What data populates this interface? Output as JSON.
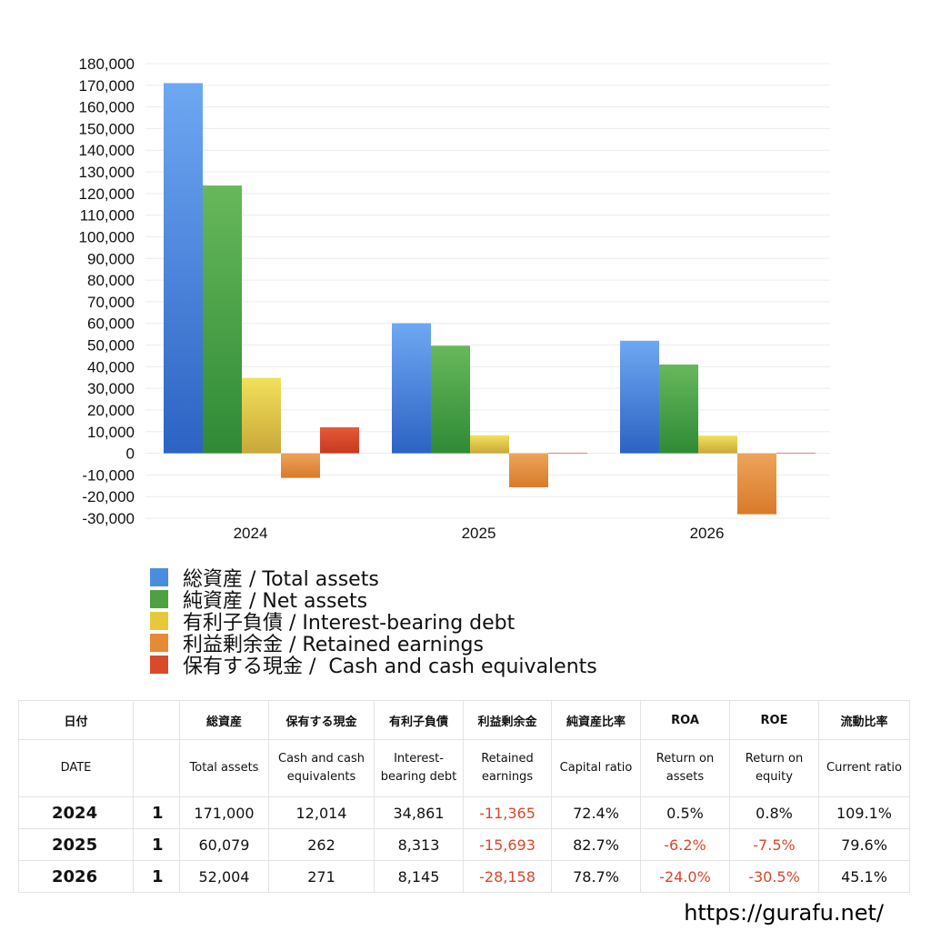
{
  "chart_data": {
    "type": "bar",
    "categories": [
      "2024",
      "2025",
      "2026"
    ],
    "ylim": [
      -30000,
      180000
    ],
    "ytick_step": 10000,
    "grid": true,
    "legend_position": "bottom",
    "series": [
      {
        "name": "総資産 / Total assets",
        "color": "#4a8de0",
        "values": [
          171000,
          60079,
          52004
        ]
      },
      {
        "name": "純資産 / Net assets",
        "color": "#4fa043",
        "values": [
          123700,
          49700,
          41000
        ]
      },
      {
        "name": "有利子負債 / Interest-bearing debt",
        "color": "#e6c93a",
        "values": [
          34861,
          8313,
          8145
        ]
      },
      {
        "name": "利益剰余金 / Retained earnings",
        "color": "#e58a35",
        "values": [
          -11365,
          -15693,
          -28158
        ]
      },
      {
        "name": "保有する現金 /  Cash and cash equivalents",
        "color": "#d94a2a",
        "values": [
          12014,
          262,
          271
        ]
      }
    ],
    "ytick_labels": [
      "-30,000",
      "-20,000",
      "-10,000",
      "0",
      "10,000",
      "20,000",
      "30,000",
      "40,000",
      "50,000",
      "60,000",
      "70,000",
      "80,000",
      "90,000",
      "100,000",
      "110,000",
      "120,000",
      "130,000",
      "140,000",
      "150,000",
      "160,000",
      "170,000",
      "180,000"
    ]
  },
  "table": {
    "header_jp": [
      "日付",
      "",
      "総資産",
      "保有する現金",
      "有利子負債",
      "利益剰余金",
      "純資産比率",
      "ROA",
      "ROE",
      "流動比率"
    ],
    "header_en": [
      "DATE",
      "",
      "Total assets",
      "Cash and cash equivalents",
      "Interest-bearing debt",
      "Retained earnings",
      "Capital ratio",
      "Return on assets",
      "Return on equity",
      "Current ratio"
    ],
    "rows": [
      {
        "date": "2024",
        "q": "1",
        "total_assets": "171,000",
        "cash": "12,014",
        "debt": "34,861",
        "retained": "-11,365",
        "capital_ratio": "72.4%",
        "roa": "0.5%",
        "roe": "0.8%",
        "current_ratio": "109.1%"
      },
      {
        "date": "2025",
        "q": "1",
        "total_assets": "60,079",
        "cash": "262",
        "debt": "8,313",
        "retained": "-15,693",
        "capital_ratio": "82.7%",
        "roa": "-6.2%",
        "roe": "-7.5%",
        "current_ratio": "79.6%"
      },
      {
        "date": "2026",
        "q": "1",
        "total_assets": "52,004",
        "cash": "271",
        "debt": "8,145",
        "retained": "-28,158",
        "capital_ratio": "78.7%",
        "roa": "-24.0%",
        "roe": "-30.5%",
        "current_ratio": "45.1%"
      }
    ]
  },
  "source_url": "https://gurafu.net/"
}
